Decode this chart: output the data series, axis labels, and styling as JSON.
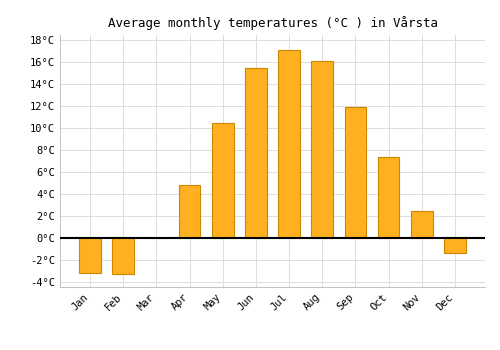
{
  "title": "Average monthly temperatures (°C ) in Vårsta",
  "months": [
    "Jan",
    "Feb",
    "Mar",
    "Apr",
    "May",
    "Jun",
    "Jul",
    "Aug",
    "Sep",
    "Oct",
    "Nov",
    "Dec"
  ],
  "values": [
    -3.2,
    -3.3,
    0.0,
    4.8,
    10.5,
    15.5,
    17.1,
    16.1,
    11.9,
    7.4,
    2.4,
    -1.4
  ],
  "bar_color": "#FFB020",
  "bar_edge_color": "#CC8800",
  "ylim": [
    -4.5,
    18.5
  ],
  "yticks": [
    -4,
    -2,
    0,
    2,
    4,
    6,
    8,
    10,
    12,
    14,
    16,
    18
  ],
  "ytick_labels": [
    "-4°C",
    "-2°C",
    "0°C",
    "2°C",
    "4°C",
    "6°C",
    "8°C",
    "10°C",
    "12°C",
    "14°C",
    "16°C",
    "18°C"
  ],
  "background_color": "#ffffff",
  "grid_color": "#dddddd",
  "title_fontsize": 9,
  "tick_fontsize": 7.5,
  "bar_width": 0.65
}
